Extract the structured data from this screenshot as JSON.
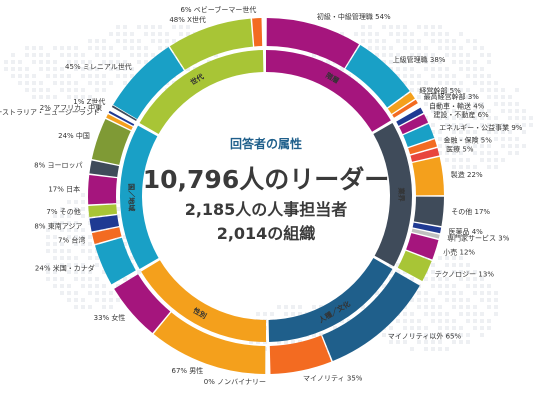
{
  "center": {
    "title": "回答者の属性",
    "line1": "10,796人のリーダー",
    "line2": "2,185人の人事担当者",
    "line3": "2,014の組織"
  },
  "chart_data": {
    "type": "pie",
    "subtype": "donut",
    "groups": [
      {
        "name": "階層",
        "color": "#a5157d",
        "segments": [
          {
            "label": "初級・中級管理職",
            "value": 54,
            "color": "#a5157d"
          },
          {
            "label": "上級管理職",
            "value": 38,
            "color": "#19a0c6"
          },
          {
            "label": "経営幹部",
            "value": 5,
            "color": "#f4a01c"
          },
          {
            "label": "最高経営幹部",
            "value": 3,
            "color": "#f36b21"
          }
        ]
      },
      {
        "name": "業界",
        "color": "#3f4b5a",
        "segments": [
          {
            "label": "自動車・輸送",
            "value": 4,
            "color": "#1f3a93"
          },
          {
            "label": "建設・不動産",
            "value": 6,
            "color": "#a5157d"
          },
          {
            "label": "エネルギー・公益事業",
            "value": 9,
            "color": "#19a0c6"
          },
          {
            "label": "金融・保険",
            "value": 5,
            "color": "#f36b21"
          },
          {
            "label": "医療",
            "value": 5,
            "color": "#e8453c"
          },
          {
            "label": "製造",
            "value": 22,
            "color": "#f4a01c"
          },
          {
            "label": "その他",
            "value": 17,
            "color": "#3f4b5a"
          },
          {
            "label": "医薬品",
            "value": 4,
            "color": "#1f3a93"
          },
          {
            "label": "専門家サービス",
            "value": 3,
            "color": "#c0c0c0"
          },
          {
            "label": "小売",
            "value": 12,
            "color": "#a5157d"
          },
          {
            "label": "テクノロジー",
            "value": 13,
            "color": "#a8c536"
          }
        ]
      },
      {
        "name": "人種／文化",
        "color": "#1f5f8b",
        "segments": [
          {
            "label": "マイノリティ以外",
            "value": 65,
            "color": "#1f5f8b"
          },
          {
            "label": "マイノリティ",
            "value": 35,
            "color": "#f36b21"
          }
        ]
      },
      {
        "name": "性別",
        "color": "#f4a01c",
        "segments": [
          {
            "label": "ノンバイナリー",
            "value": 0,
            "color": "#dddddd"
          },
          {
            "label": "男性",
            "value": 67,
            "color": "#f4a01c"
          },
          {
            "label": "女性",
            "value": 33,
            "color": "#a5157d"
          }
        ]
      },
      {
        "name": "国／地域",
        "color": "#19a0c6",
        "segments": [
          {
            "label": "米国・カナダ",
            "value": 24,
            "color": "#19a0c6"
          },
          {
            "label": "台湾",
            "value": 7,
            "color": "#f36b21"
          },
          {
            "label": "東南アジア",
            "value": 8,
            "color": "#1f3a93"
          },
          {
            "label": "その他",
            "value": 7,
            "color": "#a8c536"
          },
          {
            "label": "日本",
            "value": 17,
            "color": "#a5157d"
          },
          {
            "label": "ヨーロッパ",
            "value": 8,
            "color": "#3f4b5a"
          },
          {
            "label": "中国",
            "value": 24,
            "color": "#7f9a35"
          },
          {
            "label": "オーストラリア・ニュージーランド",
            "value": 3,
            "color": "#f4a01c"
          },
          {
            "label": "アフリカ・中東",
            "value": 2,
            "color": "#1f3a93"
          }
        ]
      },
      {
        "name": "世代",
        "color": "#a8c536",
        "segments": [
          {
            "label": "Z世代",
            "value": 1,
            "color": "#3f4b5a"
          },
          {
            "label": "ミレニアル世代",
            "value": 45,
            "color": "#19a0c6"
          },
          {
            "label": "X世代",
            "value": 48,
            "color": "#a8c536"
          },
          {
            "label": "ベビーブーマー世代",
            "value": 6,
            "color": "#f36b21"
          }
        ]
      }
    ]
  }
}
